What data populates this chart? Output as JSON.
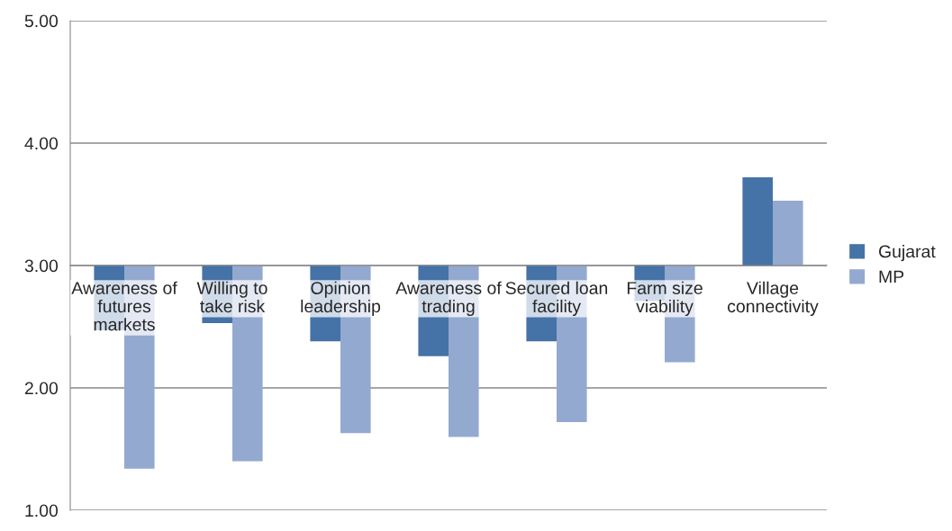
{
  "chart_data": {
    "type": "bar",
    "categories": [
      "Awareness of futures markets",
      "Willing to take risk",
      "Opinion leadership",
      "Awareness of trading",
      "Secured loan facility",
      "Farm size viability",
      "Village connectivity"
    ],
    "series": [
      {
        "name": "Gujarat",
        "color": "#4572a7",
        "base": [
          3,
          3,
          3,
          3,
          3,
          3,
          3
        ],
        "values": [
          -0.53,
          -0.47,
          -0.62,
          -0.74,
          -0.62,
          -0.29,
          0.72
        ]
      },
      {
        "name": "MP",
        "color": "#93a9cf",
        "base": [
          3,
          3,
          3,
          3,
          3,
          3,
          3
        ],
        "values": [
          -1.66,
          -1.6,
          -1.37,
          -1.4,
          -1.28,
          -0.79,
          0.53
        ]
      }
    ],
    "ylim": [
      1,
      5
    ],
    "yticks": [
      {
        "value": 1,
        "label": "1.00"
      },
      {
        "value": 2,
        "label": "2.00"
      },
      {
        "value": 3,
        "label": "3.00"
      },
      {
        "value": 4,
        "label": "4.00"
      },
      {
        "value": 5,
        "label": "5.00"
      }
    ],
    "grid": "y",
    "legend": "right"
  }
}
